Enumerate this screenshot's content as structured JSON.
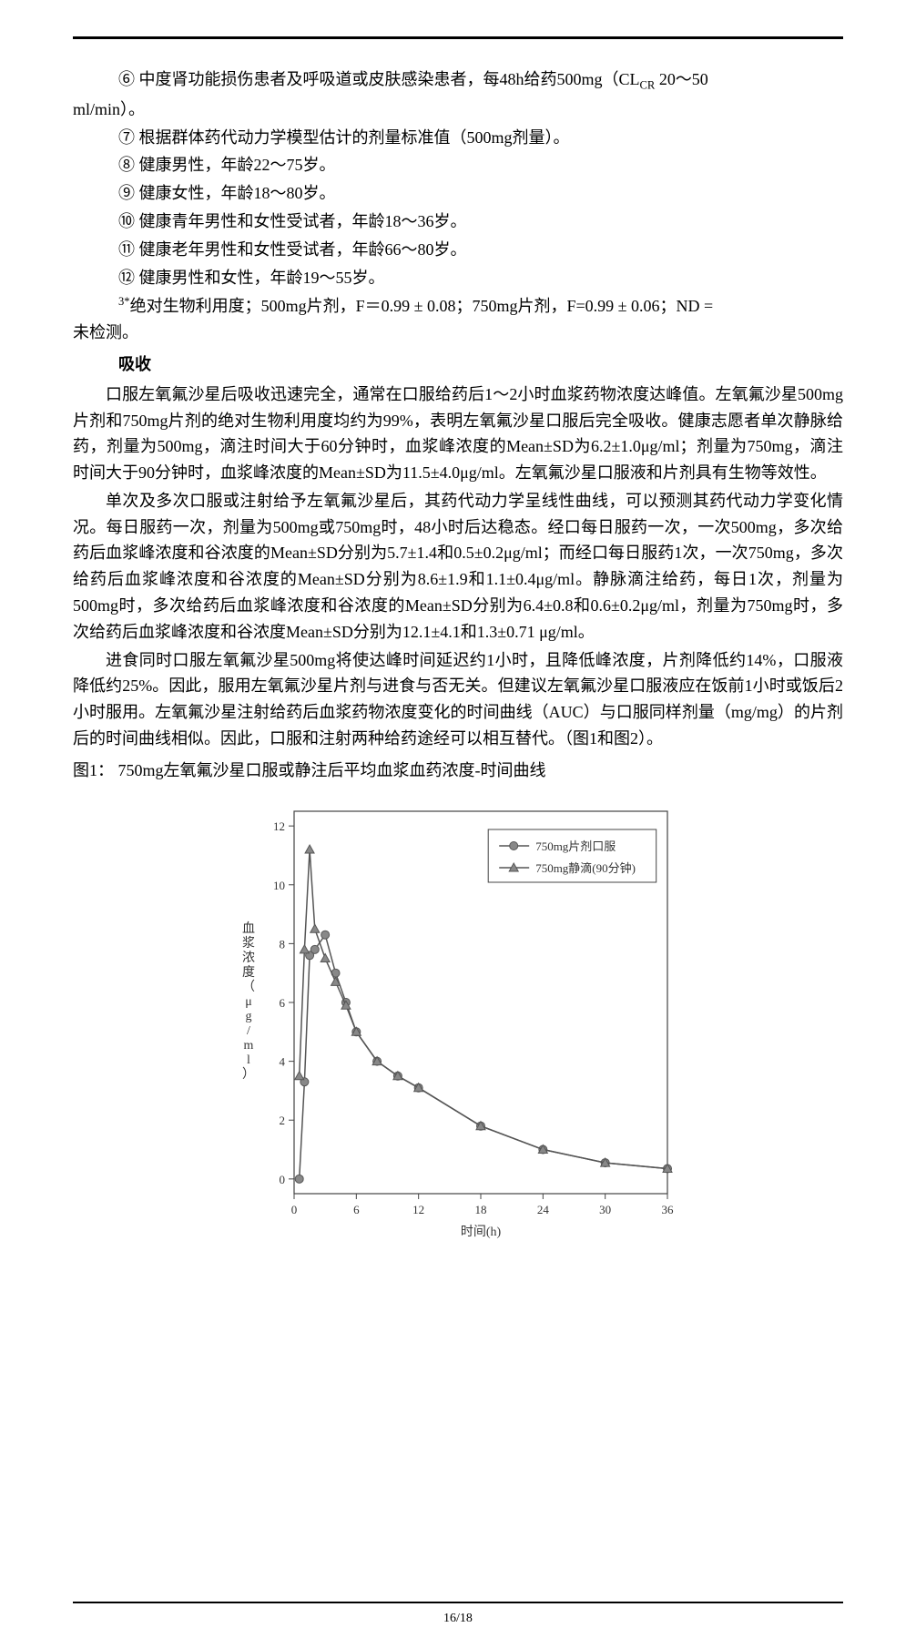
{
  "list": {
    "item6_a": "⑥ 中度肾功能损伤患者及呼吸道或皮肤感染患者，每48h给药500mg（CL",
    "item6_sub": "CR",
    "item6_b": " 20～50",
    "item6_cont": "ml/min）。",
    "item7": "⑦ 根据群体药代动力学模型估计的剂量标准值（500mg剂量）。",
    "item8": "⑧ 健康男性，年龄22～75岁。",
    "item9": "⑨ 健康女性，年龄18～80岁。",
    "item10": "⑩ 健康青年男性和女性受试者，年龄18～36岁。",
    "item11": "⑪ 健康老年男性和女性受试者，年龄66～80岁。",
    "item12": "⑫ 健康男性和女性，年龄19～55岁。",
    "footnote_sup": "3*",
    "footnote_a": "绝对生物利用度；500mg片剂，F＝0.99 ± 0.08；750mg片剂，F=0.99 ± 0.06；ND =",
    "footnote_cont": "未检测。"
  },
  "section_label": "吸收",
  "paragraphs": {
    "p1": "口服左氧氟沙星后吸收迅速完全，通常在口服给药后1～2小时血浆药物浓度达峰值。左氧氟沙星500mg片剂和750mg片剂的绝对生物利用度均约为99%，表明左氧氟沙星口服后完全吸收。健康志愿者单次静脉给药，剂量为500mg，滴注时间大于60分钟时，血浆峰浓度的Mean±SD为6.2±1.0μg/ml；剂量为750mg，滴注时间大于90分钟时，血浆峰浓度的Mean±SD为11.5±4.0μg/ml。左氧氟沙星口服液和片剂具有生物等效性。",
    "p2": "单次及多次口服或注射给予左氧氟沙星后，其药代动力学呈线性曲线，可以预测其药代动力学变化情况。每日服药一次，剂量为500mg或750mg时，48小时后达稳态。经口每日服药一次，一次500mg，多次给药后血浆峰浓度和谷浓度的Mean±SD分别为5.7±1.4和0.5±0.2μg/ml；而经口每日服药1次，一次750mg，多次给药后血浆峰浓度和谷浓度的Mean±SD分别为8.6±1.9和1.1±0.4μg/ml。静脉滴注给药，每日1次，剂量为500mg时，多次给药后血浆峰浓度和谷浓度的Mean±SD分别为6.4±0.8和0.6±0.2μg/ml，剂量为750mg时，多次给药后血浆峰浓度和谷浓度Mean±SD分别为12.1±4.1和1.3±0.71 μg/ml。",
    "p3": "进食同时口服左氧氟沙星500mg将使达峰时间延迟约1小时，且降低峰浓度，片剂降低约14%，口服液降低约25%。因此，服用左氧氟沙星片剂与进食与否无关。但建议左氧氟沙星口服液应在饭前1小时或饭后2小时服用。左氧氟沙星注射给药后血浆药物浓度变化的时间曲线（AUC）与口服同样剂量（mg/mg）的片剂后的时间曲线相似。因此，口服和注射两种给药途经可以相互替代。（图1和图2）。"
  },
  "figure_title": "图1： 750mg左氧氟沙星口服或静注后平均血浆血药浓度-时间曲线",
  "chart": {
    "xlabel": "时间(h)",
    "ylabel": "血浆浓度（μg/ml）",
    "xlim": [
      0,
      36
    ],
    "ylim": [
      -0.5,
      12.5
    ],
    "xticks": [
      0,
      6,
      12,
      18,
      24,
      30,
      36
    ],
    "yticks": [
      0,
      2,
      4,
      6,
      8,
      10,
      12
    ],
    "legend1": "750mg片剂口服",
    "legend2": "750mg静滴(90分钟)",
    "marker1": "circle",
    "marker2": "triangle",
    "line_color": "#555555",
    "marker_fill": "#888888",
    "grid_color": "#cccccc",
    "axis_color": "#444444",
    "label_fontsize": 14,
    "tick_fontsize": 13,
    "series_oral": [
      {
        "x": 0.5,
        "y": 0.0
      },
      {
        "x": 1,
        "y": 3.3
      },
      {
        "x": 1.5,
        "y": 7.6
      },
      {
        "x": 2,
        "y": 7.8
      },
      {
        "x": 3,
        "y": 8.3
      },
      {
        "x": 4,
        "y": 7.0
      },
      {
        "x": 5,
        "y": 6.0
      },
      {
        "x": 6,
        "y": 5.0
      },
      {
        "x": 8,
        "y": 4.0
      },
      {
        "x": 10,
        "y": 3.5
      },
      {
        "x": 12,
        "y": 3.1
      },
      {
        "x": 18,
        "y": 1.8
      },
      {
        "x": 24,
        "y": 1.0
      },
      {
        "x": 30,
        "y": 0.55
      },
      {
        "x": 36,
        "y": 0.35
      }
    ],
    "series_iv": [
      {
        "x": 0.5,
        "y": 3.5
      },
      {
        "x": 1,
        "y": 7.8
      },
      {
        "x": 1.5,
        "y": 11.2
      },
      {
        "x": 2,
        "y": 8.5
      },
      {
        "x": 3,
        "y": 7.5
      },
      {
        "x": 4,
        "y": 6.7
      },
      {
        "x": 5,
        "y": 5.9
      },
      {
        "x": 6,
        "y": 5.0
      },
      {
        "x": 8,
        "y": 4.0
      },
      {
        "x": 10,
        "y": 3.5
      },
      {
        "x": 12,
        "y": 3.1
      },
      {
        "x": 18,
        "y": 1.8
      },
      {
        "x": 24,
        "y": 1.0
      },
      {
        "x": 30,
        "y": 0.55
      },
      {
        "x": 36,
        "y": 0.35
      }
    ]
  },
  "page_number": "16/18"
}
